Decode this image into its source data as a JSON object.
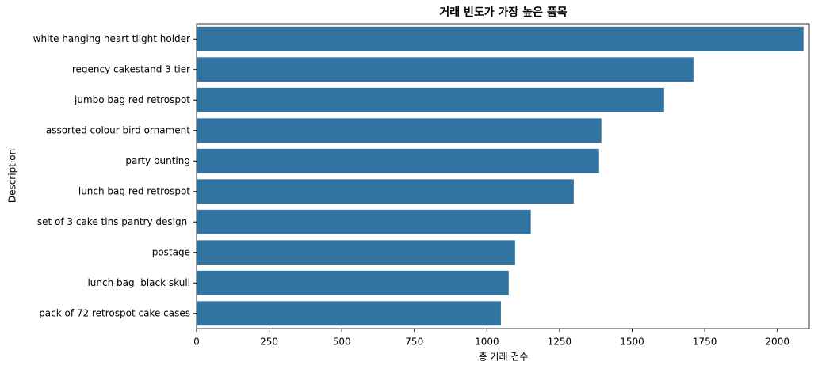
{
  "chart_data": {
    "type": "bar",
    "orientation": "horizontal",
    "title": "거래 빈도가 가장 높은 품목",
    "x_label": "총 거래 건수",
    "y_label": "Description",
    "categories": [
      "white hanging heart tlight holder",
      "regency cakestand 3 tier",
      "jumbo bag red retrospot",
      "assorted colour bird ornament",
      "party bunting",
      "lunch bag red retrospot",
      "set of 3 cake tins pantry design ",
      "postage",
      "lunch bag  black skull",
      "pack of 72 retrospot cake cases"
    ],
    "values": [
      2090,
      1711,
      1610,
      1394,
      1386,
      1299,
      1151,
      1097,
      1075,
      1048
    ],
    "color": "#3274a1",
    "xlim": [
      0,
      2110
    ],
    "xticks": [
      0,
      250,
      500,
      750,
      1000,
      1250,
      1500,
      1750,
      2000
    ]
  }
}
